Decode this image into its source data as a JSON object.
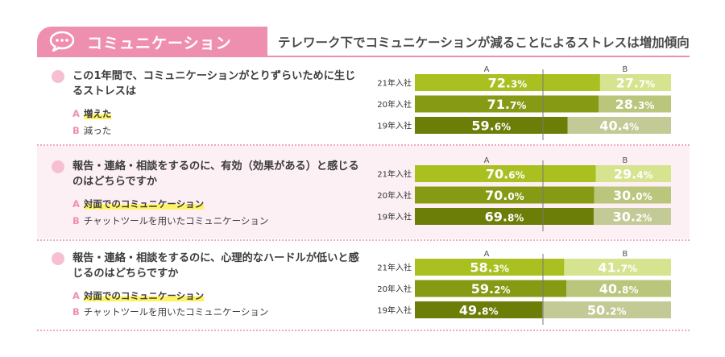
{
  "header": {
    "title": "コミュニケーション",
    "subtitle": "テレワーク下でコミュニケーションが減ることによるストレスは増加傾向"
  },
  "colors": {
    "accent_pink": "#ef8fb0",
    "dot_pink": "#f6bfd2",
    "row_colors": [
      {
        "a": "#a9c020",
        "b": "#d6e38f"
      },
      {
        "a": "#869a14",
        "b": "#b9c67c"
      },
      {
        "a": "#6c7d08",
        "b": "#c3ca96"
      }
    ]
  },
  "sections": [
    {
      "question": "この1年間で、コミュニケーションがとりずらいために生じるストレスは",
      "options": [
        {
          "letter": "A",
          "text": "増えた",
          "highlight": true
        },
        {
          "letter": "B",
          "text": "減った",
          "highlight": false
        }
      ]
    },
    {
      "question": "報告・連絡・相談をするのに、有効（効果がある）と感じるのはどちらですか",
      "options": [
        {
          "letter": "A",
          "text": "対面でのコミュニケーション",
          "highlight": true
        },
        {
          "letter": "B",
          "text": "チャットツールを用いたコミュニケーション",
          "highlight": false
        }
      ]
    },
    {
      "question": "報告・連絡・相談をするのに、心理的なハードルが低いと感じるのはどちらですか",
      "options": [
        {
          "letter": "A",
          "text": "対面でのコミュニケーション",
          "highlight": true
        },
        {
          "letter": "B",
          "text": "チャットツールを用いたコミュニケーション",
          "highlight": false
        }
      ]
    }
  ],
  "chart_data": [
    {
      "type": "bar",
      "stacked": true,
      "orientation": "horizontal",
      "categories": [
        "21年入社",
        "20年入社",
        "19年入社"
      ],
      "series": [
        {
          "name": "A",
          "values": [
            72.3,
            71.7,
            59.6
          ]
        },
        {
          "name": "B",
          "values": [
            27.7,
            28.3,
            40.4
          ]
        }
      ],
      "unit": "%",
      "xlim": [
        0,
        100
      ]
    },
    {
      "type": "bar",
      "stacked": true,
      "orientation": "horizontal",
      "categories": [
        "21年入社",
        "20年入社",
        "19年入社"
      ],
      "series": [
        {
          "name": "A",
          "values": [
            70.6,
            70.0,
            69.8
          ]
        },
        {
          "name": "B",
          "values": [
            29.4,
            30.0,
            30.2
          ]
        }
      ],
      "unit": "%",
      "xlim": [
        0,
        100
      ]
    },
    {
      "type": "bar",
      "stacked": true,
      "orientation": "horizontal",
      "categories": [
        "21年入社",
        "20年入社",
        "19年入社"
      ],
      "series": [
        {
          "name": "A",
          "values": [
            58.3,
            59.2,
            49.8
          ]
        },
        {
          "name": "B",
          "values": [
            41.7,
            40.8,
            50.2
          ]
        }
      ],
      "unit": "%",
      "xlim": [
        0,
        100
      ]
    }
  ]
}
